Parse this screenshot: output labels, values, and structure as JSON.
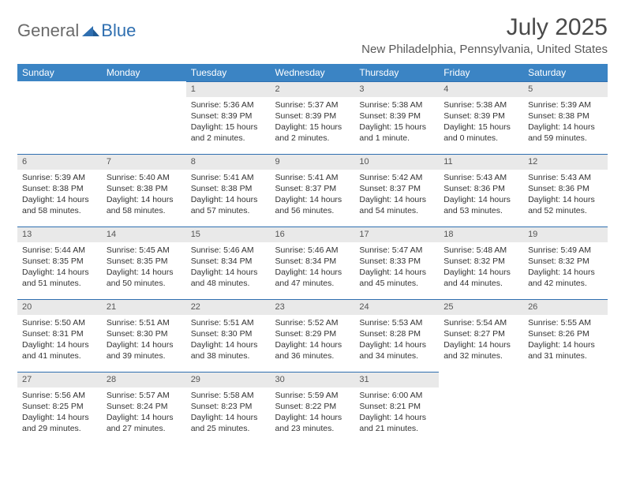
{
  "brand": {
    "part1": "General",
    "part2": "Blue"
  },
  "title": "July 2025",
  "location": "New Philadelphia, Pennsylvania, United States",
  "colors": {
    "header_bg": "#3b84c4",
    "header_text": "#ffffff",
    "daynum_bg": "#e9e9e9",
    "daynum_border": "#2f6fb0",
    "text": "#333333",
    "brand_gray": "#6a6a6a",
    "brand_blue": "#2f6fb0",
    "background": "#ffffff"
  },
  "weekdays": [
    "Sunday",
    "Monday",
    "Tuesday",
    "Wednesday",
    "Thursday",
    "Friday",
    "Saturday"
  ],
  "weeks": [
    [
      null,
      null,
      {
        "n": "1",
        "sr": "Sunrise: 5:36 AM",
        "ss": "Sunset: 8:39 PM",
        "dl1": "Daylight: 15 hours",
        "dl2": "and 2 minutes."
      },
      {
        "n": "2",
        "sr": "Sunrise: 5:37 AM",
        "ss": "Sunset: 8:39 PM",
        "dl1": "Daylight: 15 hours",
        "dl2": "and 2 minutes."
      },
      {
        "n": "3",
        "sr": "Sunrise: 5:38 AM",
        "ss": "Sunset: 8:39 PM",
        "dl1": "Daylight: 15 hours",
        "dl2": "and 1 minute."
      },
      {
        "n": "4",
        "sr": "Sunrise: 5:38 AM",
        "ss": "Sunset: 8:39 PM",
        "dl1": "Daylight: 15 hours",
        "dl2": "and 0 minutes."
      },
      {
        "n": "5",
        "sr": "Sunrise: 5:39 AM",
        "ss": "Sunset: 8:38 PM",
        "dl1": "Daylight: 14 hours",
        "dl2": "and 59 minutes."
      }
    ],
    [
      {
        "n": "6",
        "sr": "Sunrise: 5:39 AM",
        "ss": "Sunset: 8:38 PM",
        "dl1": "Daylight: 14 hours",
        "dl2": "and 58 minutes."
      },
      {
        "n": "7",
        "sr": "Sunrise: 5:40 AM",
        "ss": "Sunset: 8:38 PM",
        "dl1": "Daylight: 14 hours",
        "dl2": "and 58 minutes."
      },
      {
        "n": "8",
        "sr": "Sunrise: 5:41 AM",
        "ss": "Sunset: 8:38 PM",
        "dl1": "Daylight: 14 hours",
        "dl2": "and 57 minutes."
      },
      {
        "n": "9",
        "sr": "Sunrise: 5:41 AM",
        "ss": "Sunset: 8:37 PM",
        "dl1": "Daylight: 14 hours",
        "dl2": "and 56 minutes."
      },
      {
        "n": "10",
        "sr": "Sunrise: 5:42 AM",
        "ss": "Sunset: 8:37 PM",
        "dl1": "Daylight: 14 hours",
        "dl2": "and 54 minutes."
      },
      {
        "n": "11",
        "sr": "Sunrise: 5:43 AM",
        "ss": "Sunset: 8:36 PM",
        "dl1": "Daylight: 14 hours",
        "dl2": "and 53 minutes."
      },
      {
        "n": "12",
        "sr": "Sunrise: 5:43 AM",
        "ss": "Sunset: 8:36 PM",
        "dl1": "Daylight: 14 hours",
        "dl2": "and 52 minutes."
      }
    ],
    [
      {
        "n": "13",
        "sr": "Sunrise: 5:44 AM",
        "ss": "Sunset: 8:35 PM",
        "dl1": "Daylight: 14 hours",
        "dl2": "and 51 minutes."
      },
      {
        "n": "14",
        "sr": "Sunrise: 5:45 AM",
        "ss": "Sunset: 8:35 PM",
        "dl1": "Daylight: 14 hours",
        "dl2": "and 50 minutes."
      },
      {
        "n": "15",
        "sr": "Sunrise: 5:46 AM",
        "ss": "Sunset: 8:34 PM",
        "dl1": "Daylight: 14 hours",
        "dl2": "and 48 minutes."
      },
      {
        "n": "16",
        "sr": "Sunrise: 5:46 AM",
        "ss": "Sunset: 8:34 PM",
        "dl1": "Daylight: 14 hours",
        "dl2": "and 47 minutes."
      },
      {
        "n": "17",
        "sr": "Sunrise: 5:47 AM",
        "ss": "Sunset: 8:33 PM",
        "dl1": "Daylight: 14 hours",
        "dl2": "and 45 minutes."
      },
      {
        "n": "18",
        "sr": "Sunrise: 5:48 AM",
        "ss": "Sunset: 8:32 PM",
        "dl1": "Daylight: 14 hours",
        "dl2": "and 44 minutes."
      },
      {
        "n": "19",
        "sr": "Sunrise: 5:49 AM",
        "ss": "Sunset: 8:32 PM",
        "dl1": "Daylight: 14 hours",
        "dl2": "and 42 minutes."
      }
    ],
    [
      {
        "n": "20",
        "sr": "Sunrise: 5:50 AM",
        "ss": "Sunset: 8:31 PM",
        "dl1": "Daylight: 14 hours",
        "dl2": "and 41 minutes."
      },
      {
        "n": "21",
        "sr": "Sunrise: 5:51 AM",
        "ss": "Sunset: 8:30 PM",
        "dl1": "Daylight: 14 hours",
        "dl2": "and 39 minutes."
      },
      {
        "n": "22",
        "sr": "Sunrise: 5:51 AM",
        "ss": "Sunset: 8:30 PM",
        "dl1": "Daylight: 14 hours",
        "dl2": "and 38 minutes."
      },
      {
        "n": "23",
        "sr": "Sunrise: 5:52 AM",
        "ss": "Sunset: 8:29 PM",
        "dl1": "Daylight: 14 hours",
        "dl2": "and 36 minutes."
      },
      {
        "n": "24",
        "sr": "Sunrise: 5:53 AM",
        "ss": "Sunset: 8:28 PM",
        "dl1": "Daylight: 14 hours",
        "dl2": "and 34 minutes."
      },
      {
        "n": "25",
        "sr": "Sunrise: 5:54 AM",
        "ss": "Sunset: 8:27 PM",
        "dl1": "Daylight: 14 hours",
        "dl2": "and 32 minutes."
      },
      {
        "n": "26",
        "sr": "Sunrise: 5:55 AM",
        "ss": "Sunset: 8:26 PM",
        "dl1": "Daylight: 14 hours",
        "dl2": "and 31 minutes."
      }
    ],
    [
      {
        "n": "27",
        "sr": "Sunrise: 5:56 AM",
        "ss": "Sunset: 8:25 PM",
        "dl1": "Daylight: 14 hours",
        "dl2": "and 29 minutes."
      },
      {
        "n": "28",
        "sr": "Sunrise: 5:57 AM",
        "ss": "Sunset: 8:24 PM",
        "dl1": "Daylight: 14 hours",
        "dl2": "and 27 minutes."
      },
      {
        "n": "29",
        "sr": "Sunrise: 5:58 AM",
        "ss": "Sunset: 8:23 PM",
        "dl1": "Daylight: 14 hours",
        "dl2": "and 25 minutes."
      },
      {
        "n": "30",
        "sr": "Sunrise: 5:59 AM",
        "ss": "Sunset: 8:22 PM",
        "dl1": "Daylight: 14 hours",
        "dl2": "and 23 minutes."
      },
      {
        "n": "31",
        "sr": "Sunrise: 6:00 AM",
        "ss": "Sunset: 8:21 PM",
        "dl1": "Daylight: 14 hours",
        "dl2": "and 21 minutes."
      },
      null,
      null
    ]
  ]
}
